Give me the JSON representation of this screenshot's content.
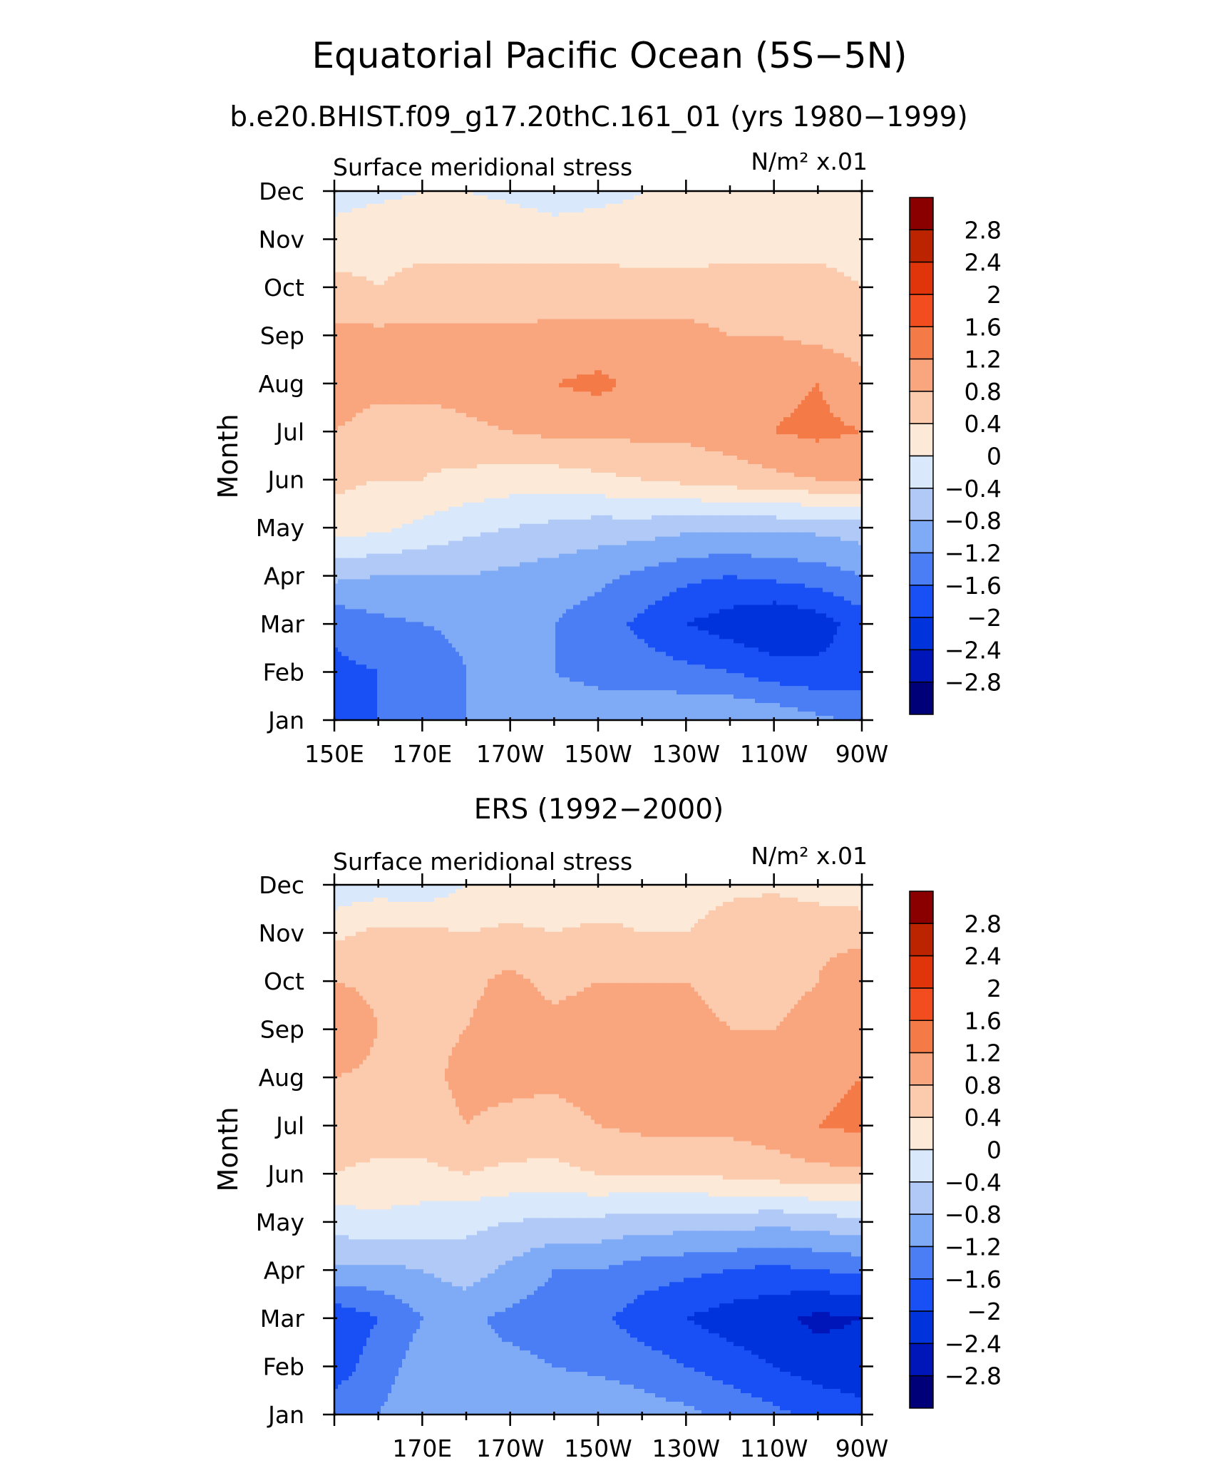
{
  "title": "Equatorial Pacific Ocean (5S−5N)",
  "chart_data": [
    {
      "type": "heatmap",
      "subtitle": "b.e20.BHIST.f09_g17.20thC.161_01 (yrs 1980−1999)",
      "left_label": "Surface meridional stress",
      "units_label": "N/m² x.01",
      "ylabel": "Month",
      "xlabel": "",
      "y_categories": [
        "Jan",
        "Feb",
        "Mar",
        "Apr",
        "May",
        "Jun",
        "Jul",
        "Aug",
        "Sep",
        "Oct",
        "Nov",
        "Dec"
      ],
      "x_tick_labels": [
        "150E",
        "170E",
        "170W",
        "150W",
        "130W",
        "110W",
        "90W"
      ],
      "x_tick_values": [
        150,
        170,
        190,
        210,
        230,
        250,
        270
      ],
      "xlim": [
        150,
        270
      ],
      "x": [
        150,
        160,
        170,
        180,
        190,
        200,
        210,
        220,
        230,
        240,
        250,
        260,
        270
      ],
      "z": [
        [
          -1.6,
          -1.6,
          -1.5,
          -1.2,
          -1.1,
          -1.0,
          -1.0,
          -0.9,
          -0.8,
          -0.8,
          -0.9,
          -1.1,
          -1.3
        ],
        [
          -1.7,
          -1.6,
          -1.5,
          -1.2,
          -1.2,
          -1.2,
          -1.3,
          -1.4,
          -1.5,
          -1.6,
          -1.8,
          -1.9,
          -1.8
        ],
        [
          -1.5,
          -1.3,
          -1.2,
          -1.1,
          -1.1,
          -1.2,
          -1.4,
          -1.7,
          -2.0,
          -2.2,
          -2.4,
          -2.2,
          -1.8
        ],
        [
          -0.7,
          -0.8,
          -0.8,
          -0.8,
          -0.9,
          -1.0,
          -1.1,
          -1.3,
          -1.5,
          -1.6,
          -1.5,
          -1.4,
          -1.2
        ],
        [
          0.2,
          0.1,
          -0.1,
          -0.3,
          -0.4,
          -0.5,
          -0.6,
          -0.6,
          -0.7,
          -0.7,
          -0.7,
          -0.7,
          -0.6
        ],
        [
          0.5,
          0.4,
          0.4,
          0.3,
          0.2,
          0.2,
          0.3,
          0.4,
          0.5,
          0.6,
          0.7,
          0.8,
          0.8
        ],
        [
          0.8,
          0.5,
          0.5,
          0.7,
          0.8,
          0.9,
          0.9,
          0.9,
          0.9,
          1.0,
          1.2,
          1.3,
          1.2
        ],
        [
          1.2,
          1.0,
          1.0,
          1.0,
          1.1,
          1.2,
          1.3,
          1.1,
          1.0,
          1.0,
          1.1,
          1.2,
          0.9
        ],
        [
          0.9,
          0.9,
          0.9,
          0.9,
          0.9,
          0.9,
          0.9,
          0.9,
          0.9,
          0.8,
          0.8,
          0.7,
          0.6
        ],
        [
          0.5,
          0.4,
          0.5,
          0.5,
          0.5,
          0.6,
          0.6,
          0.6,
          0.6,
          0.6,
          0.5,
          0.5,
          0.4
        ],
        [
          0.2,
          0.3,
          0.3,
          0.3,
          0.3,
          0.2,
          0.2,
          0.1,
          0.1,
          0.2,
          0.3,
          0.3,
          0.3
        ],
        [
          -0.2,
          -0.1,
          0.0,
          0.0,
          -0.1,
          -0.2,
          -0.1,
          0.0,
          0.2,
          0.3,
          0.4,
          0.3,
          0.2
        ]
      ],
      "levels": [
        -2.8,
        -2.4,
        -2.0,
        -1.6,
        -1.2,
        -0.8,
        -0.4,
        0,
        0.4,
        0.8,
        1.2,
        1.6,
        2.0,
        2.4,
        2.8
      ],
      "level_labels": [
        "2.8",
        "2.4",
        "2",
        "1.6",
        "1.2",
        "0.8",
        "0.4",
        "0",
        "−0.4",
        "−0.8",
        "−1.2",
        "−1.6",
        "−2",
        "−2.4",
        "−2.8"
      ]
    },
    {
      "type": "heatmap",
      "subtitle": "ERS (1992−2000)",
      "left_label": "Surface meridional stress",
      "units_label": "N/m² x.01",
      "ylabel": "Month",
      "xlabel": "",
      "y_categories": [
        "Jan",
        "Feb",
        "Mar",
        "Apr",
        "May",
        "Jun",
        "Jul",
        "Aug",
        "Sep",
        "Oct",
        "Nov",
        "Dec"
      ],
      "x_tick_labels": [
        "170E",
        "170W",
        "150W",
        "130W",
        "110W",
        "90W"
      ],
      "x_tick_values": [
        170,
        190,
        210,
        230,
        250,
        270
      ],
      "xlim": [
        150,
        270
      ],
      "x": [
        150,
        160,
        170,
        180,
        190,
        200,
        210,
        220,
        230,
        240,
        250,
        260,
        270
      ],
      "z": [
        [
          -1.4,
          -1.2,
          -0.9,
          -0.8,
          -1.0,
          -0.8,
          -0.8,
          -1.0,
          -1.1,
          -1.3,
          -1.5,
          -1.7,
          -1.9
        ],
        [
          -1.8,
          -1.4,
          -1.0,
          -1.2,
          -1.1,
          -1.2,
          -1.3,
          -1.4,
          -1.6,
          -1.8,
          -2.0,
          -2.2,
          -2.2
        ],
        [
          -1.9,
          -1.6,
          -1.2,
          -1.1,
          -1.3,
          -1.4,
          -1.5,
          -1.8,
          -2.0,
          -2.2,
          -2.3,
          -2.5,
          -2.4
        ],
        [
          -0.9,
          -0.9,
          -0.8,
          -0.6,
          -0.9,
          -1.2,
          -1.2,
          -1.4,
          -1.5,
          -1.6,
          -1.7,
          -1.6,
          -1.5
        ],
        [
          -0.2,
          -0.1,
          -0.2,
          -0.3,
          -0.4,
          -0.5,
          -0.5,
          -0.6,
          -0.6,
          -0.6,
          -0.7,
          -0.6,
          -0.5
        ],
        [
          0.4,
          0.3,
          0.3,
          0.4,
          0.3,
          0.3,
          0.4,
          0.4,
          0.4,
          0.5,
          0.6,
          0.7,
          0.7
        ],
        [
          0.6,
          0.6,
          0.6,
          0.8,
          0.7,
          0.6,
          0.8,
          0.9,
          0.9,
          0.9,
          1.0,
          1.2,
          1.3
        ],
        [
          0.8,
          0.7,
          0.7,
          0.9,
          0.9,
          0.9,
          1.0,
          0.9,
          0.9,
          0.9,
          0.9,
          1.1,
          1.2
        ],
        [
          1.2,
          0.8,
          0.7,
          0.8,
          1.0,
          0.9,
          1.0,
          1.0,
          0.9,
          0.8,
          0.8,
          0.9,
          1.2
        ],
        [
          0.8,
          0.7,
          0.6,
          0.7,
          0.9,
          0.7,
          0.8,
          0.8,
          0.8,
          0.7,
          0.7,
          0.8,
          1.2
        ],
        [
          0.3,
          0.5,
          0.5,
          0.4,
          0.5,
          0.4,
          0.5,
          0.4,
          0.4,
          0.6,
          0.8,
          0.7,
          0.6
        ],
        [
          -0.3,
          -0.2,
          -0.3,
          0.0,
          0.0,
          0.1,
          0.1,
          0.2,
          0.2,
          0.3,
          0.3,
          0.2,
          0.2
        ]
      ],
      "levels": [
        -2.8,
        -2.4,
        -2.0,
        -1.6,
        -1.2,
        -0.8,
        -0.4,
        0,
        0.4,
        0.8,
        1.2,
        1.6,
        2.0,
        2.4,
        2.8
      ],
      "level_labels": [
        "2.8",
        "2.4",
        "2",
        "1.6",
        "1.2",
        "0.8",
        "0.4",
        "0",
        "−0.4",
        "−0.8",
        "−1.2",
        "−1.6",
        "−2",
        "−2.4",
        "−2.8"
      ]
    }
  ],
  "colors": [
    "#000078",
    "#0016b8",
    "#0033dc",
    "#1850f5",
    "#4b7ef5",
    "#7faaf5",
    "#b0c9f6",
    "#d9e8fb",
    "#fde9d8",
    "#fccaad",
    "#f9a67f",
    "#f47a47",
    "#f24d1e",
    "#e0340a",
    "#bc2400",
    "#8a0000"
  ]
}
